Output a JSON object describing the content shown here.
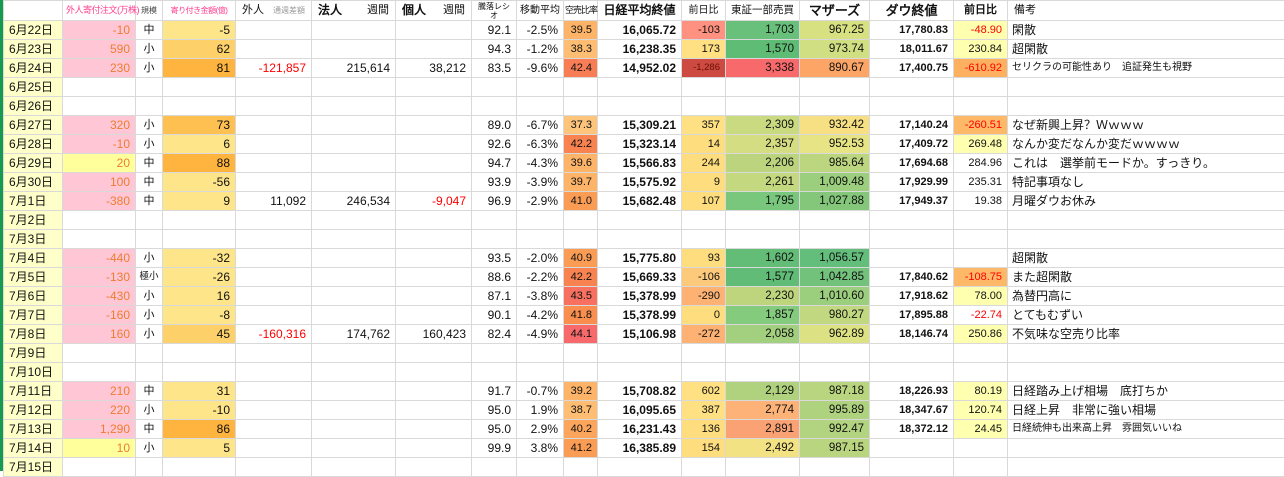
{
  "sheet": {
    "colors": {
      "left_edge": "#169b4e",
      "gridline": "#d9d9d9",
      "date_column_bg": "#ffffc9",
      "negative_text": "#ff0000",
      "foreign_order_bg": "#ffc7d6",
      "foreign_order_text": "#ed7d31"
    }
  },
  "table": {
    "columns": [
      {
        "key": "date",
        "label": ""
      },
      {
        "key": "foreign_order",
        "label": "外人寄付注文(万株)"
      },
      {
        "key": "size",
        "label": "規模"
      },
      {
        "key": "opening_amount",
        "label": "寄り付き金額(億)"
      },
      {
        "key": "foreign_week",
        "label": "外人",
        "sublabel": "通週差額"
      },
      {
        "key": "corp_week",
        "label": "法人",
        "sublabel": "週間"
      },
      {
        "key": "indiv_week",
        "label": "個人",
        "sublabel": "週間"
      },
      {
        "key": "updown_ratio",
        "label": "騰落レシオ"
      },
      {
        "key": "moving_avg",
        "label": "移動平均"
      },
      {
        "key": "short_ratio",
        "label": "空売比率"
      },
      {
        "key": "nikkei_close",
        "label": "日経平均終値"
      },
      {
        "key": "nikkei_change",
        "label": "前日比"
      },
      {
        "key": "tse1_value",
        "label": "東証一部売買"
      },
      {
        "key": "mothers",
        "label": "マザーズ"
      },
      {
        "key": "dow_close",
        "label": "ダウ終値"
      },
      {
        "key": "dow_change",
        "label": "前日比"
      },
      {
        "key": "note",
        "label": "備考"
      }
    ],
    "rows": [
      {
        "date": "6月22日",
        "cells": [
          [
            "-10",
            "#ffc7d6",
            "#ed7d31"
          ],
          [
            "中"
          ],
          [
            "-5",
            "#ffe58a"
          ],
          [],
          [],
          [],
          [
            "92.1"
          ],
          [
            "-2.5%"
          ],
          [
            "39.5",
            "#fdb368"
          ],
          [
            "16,065.72"
          ],
          [
            "-103",
            "#ff9180"
          ],
          [
            "1,703",
            "#68c07b"
          ],
          [
            "967.25",
            "#d7e182"
          ],
          [
            "17,780.83"
          ],
          [
            "-48.90",
            "#ffffb0",
            "#ff0000"
          ],
          [
            "閑散"
          ]
        ]
      },
      {
        "date": "6月23日",
        "cells": [
          [
            "590",
            "#ffc7d6",
            "#ed7d31"
          ],
          [
            "小"
          ],
          [
            "62",
            "#fed06a"
          ],
          [],
          [],
          [],
          [
            "94.3"
          ],
          [
            "-1.2%"
          ],
          [
            "38.3",
            "#fdbd72"
          ],
          [
            "16,238.35"
          ],
          [
            "173",
            "#ffe083"
          ],
          [
            "1,570",
            "#5fbc75"
          ],
          [
            "973.74",
            "#cfdf81"
          ],
          [
            "18,011.67"
          ],
          [
            "230.84",
            "#ffffb0"
          ],
          [
            "超閑散"
          ]
        ]
      },
      {
        "date": "6月24日",
        "cells": [
          [
            "230",
            "#ffc7d6",
            "#ed7d31"
          ],
          [
            "小"
          ],
          [
            "81",
            "#feb43f"
          ],
          [
            "-121,857",
            "",
            "#ff0000"
          ],
          [
            "215,614"
          ],
          [
            "38,212"
          ],
          [
            "83.5"
          ],
          [
            "-9.6%"
          ],
          [
            "42.4",
            "#f87d55"
          ],
          [
            "14,952.02"
          ],
          [
            "-1,286",
            "#cd4a42",
            "#6b0f00",
            "tiny"
          ],
          [
            "3,338",
            "#f8696b"
          ],
          [
            "890.67",
            "#fca567"
          ],
          [
            "17,400.75"
          ],
          [
            "-610.92",
            "#fdb060",
            "#ff0000"
          ],
          [
            "セリクラの可能性あり　追証発生も視野",
            "",
            "",
            "small-note"
          ]
        ]
      },
      {
        "date": "6月25日",
        "cells": []
      },
      {
        "date": "6月26日",
        "cells": []
      },
      {
        "date": "6月27日",
        "cells": [
          [
            "320",
            "#ffc7d6",
            "#ed7d31"
          ],
          [
            "小"
          ],
          [
            "73",
            "#fec050"
          ],
          [],
          [],
          [],
          [
            "89.0"
          ],
          [
            "-6.7%"
          ],
          [
            "37.3",
            "#fdc57c"
          ],
          [
            "15,309.21"
          ],
          [
            "357",
            "#ffe083"
          ],
          [
            "2,309",
            "#cada80"
          ],
          [
            "932.42",
            "#f6e083"
          ],
          [
            "17,140.24"
          ],
          [
            "-260.51",
            "#fdb868",
            "#ff0000"
          ],
          [
            "なぜ新興上昇？Ｗｗｗｗ"
          ]
        ]
      },
      {
        "date": "6月28日",
        "cells": [
          [
            "-10",
            "#ffc7d6",
            "#ed7d31"
          ],
          [
            "小"
          ],
          [
            "6",
            "#ffe58a"
          ],
          [],
          [],
          [],
          [
            "92.6"
          ],
          [
            "-6.3%"
          ],
          [
            "42.2",
            "#f98350"
          ],
          [
            "15,323.14"
          ],
          [
            "14",
            "#fedd7e"
          ],
          [
            "2,357",
            "#d4dd81"
          ],
          [
            "952.53",
            "#e6e484"
          ],
          [
            "17,409.72"
          ],
          [
            "269.48",
            "#ffffb0"
          ],
          [
            "なんか変だなんか変だｗｗｗｗ"
          ]
        ]
      },
      {
        "date": "6月29日",
        "cells": [
          [
            "20",
            "#ffff9c",
            "#ed7d31"
          ],
          [
            "中"
          ],
          [
            "88",
            "#feb43f"
          ],
          [],
          [],
          [],
          [
            "94.7"
          ],
          [
            "-4.3%"
          ],
          [
            "39.6",
            "#fdb368"
          ],
          [
            "15,566.83"
          ],
          [
            "244",
            "#fedd7e"
          ],
          [
            "2,206",
            "#bcd47e"
          ],
          [
            "985.64",
            "#bcd67f"
          ],
          [
            "17,694.68"
          ],
          [
            "284.96"
          ],
          [
            "これは　選挙前モードか。すっきり。"
          ]
        ]
      },
      {
        "date": "6月30日",
        "cells": [
          [
            "100",
            "#ffc7d6",
            "#ed7d31"
          ],
          [
            "中"
          ],
          [
            "-56",
            "#ffe58a"
          ],
          [],
          [],
          [],
          [
            "93.9"
          ],
          [
            "-3.9%"
          ],
          [
            "39.7",
            "#fdb368"
          ],
          [
            "15,575.92"
          ],
          [
            "9",
            "#fedd7e"
          ],
          [
            "2,261",
            "#c4d87f"
          ],
          [
            "1,009.48",
            "#9ccf7d"
          ],
          [
            "17,929.99"
          ],
          [
            "235.31"
          ],
          [
            "特記事項なし"
          ]
        ]
      },
      {
        "date": "7月1日",
        "cells": [
          [
            "-380",
            "#ffc7d6",
            "#ed7d31"
          ],
          [
            "中"
          ],
          [
            "9",
            "#ffe58a"
          ],
          [
            "11,092"
          ],
          [
            "246,534"
          ],
          [
            "-9,047",
            "",
            "#ff0000"
          ],
          [
            "96.9"
          ],
          [
            "-2.9%"
          ],
          [
            "41.0",
            "#fb9c55"
          ],
          [
            "15,682.48"
          ],
          [
            "107",
            "#fedd7e"
          ],
          [
            "1,795",
            "#79c77d"
          ],
          [
            "1,027.88",
            "#84c77b"
          ],
          [
            "17,949.37"
          ],
          [
            "19.38"
          ],
          [
            "月曜ダウお休み"
          ]
        ]
      },
      {
        "date": "7月2日",
        "cells": []
      },
      {
        "date": "7月3日",
        "cells": []
      },
      {
        "date": "7月4日",
        "cells": [
          [
            "-440",
            "#ffc7d6",
            "#ed7d31"
          ],
          [
            "小"
          ],
          [
            "-32",
            "#ffe58a"
          ],
          [],
          [],
          [],
          [
            "93.5"
          ],
          [
            "-2.0%"
          ],
          [
            "40.9",
            "#fb9c55"
          ],
          [
            "15,775.80"
          ],
          [
            "93",
            "#fedd7e"
          ],
          [
            "1,602",
            "#63bd77"
          ],
          [
            "1,056.57",
            "#63be7b"
          ],
          [],
          [],
          [
            "超閑散"
          ]
        ]
      },
      {
        "date": "7月5日",
        "cells": [
          [
            "-130",
            "#ffc7d6",
            "#ed7d31"
          ],
          [
            "極小",
            "",
            "",
            "tiny"
          ],
          [
            "-26",
            "#ffe58a"
          ],
          [],
          [],
          [],
          [
            "88.6"
          ],
          [
            "-2.2%"
          ],
          [
            "42.2",
            "#f98350"
          ],
          [
            "15,669.33"
          ],
          [
            "-106",
            "#fdc97a"
          ],
          [
            "1,577",
            "#60bc76"
          ],
          [
            "1,042.85",
            "#72c27b"
          ],
          [
            "17,840.62"
          ],
          [
            "-108.75",
            "#fdb868",
            "#ff0000"
          ],
          [
            "また超閑散"
          ]
        ]
      },
      {
        "date": "7月6日",
        "cells": [
          [
            "-430",
            "#ffc7d6",
            "#ed7d31"
          ],
          [
            "小"
          ],
          [
            "16",
            "#ffe58a"
          ],
          [],
          [],
          [],
          [
            "87.1"
          ],
          [
            "-3.8%"
          ],
          [
            "43.5",
            "#f8705f"
          ],
          [
            "15,378.99"
          ],
          [
            "-290",
            "#fdb273"
          ],
          [
            "2,230",
            "#bed57e"
          ],
          [
            "1,010.60",
            "#9bce7d"
          ],
          [
            "17,918.62"
          ],
          [
            "78.00",
            "#ffffb0"
          ],
          [
            "為替円高に"
          ]
        ]
      },
      {
        "date": "7月7日",
        "cells": [
          [
            "-160",
            "#ffc7d6",
            "#ed7d31"
          ],
          [
            "小"
          ],
          [
            "-8",
            "#ffe58a"
          ],
          [],
          [],
          [],
          [
            "90.1"
          ],
          [
            "-4.2%"
          ],
          [
            "41.8",
            "#fa8e4e"
          ],
          [
            "15,378.99"
          ],
          [
            "0",
            "#fedd7e"
          ],
          [
            "1,857",
            "#84cb7e"
          ],
          [
            "980.27",
            "#c2d880"
          ],
          [
            "17,895.88"
          ],
          [
            "-22.74",
            "",
            "#ff0000"
          ],
          [
            "とてもむずい"
          ]
        ]
      },
      {
        "date": "7月8日",
        "cells": [
          [
            "160",
            "#ffc7d6",
            "#ed7d31"
          ],
          [
            "小"
          ],
          [
            "45",
            "#fed06a"
          ],
          [
            "-160,316",
            "",
            "#ff0000"
          ],
          [
            "174,762"
          ],
          [
            "160,423"
          ],
          [
            "82.4"
          ],
          [
            "-4.9%"
          ],
          [
            "44.1",
            "#f8696b"
          ],
          [
            "15,106.98"
          ],
          [
            "-272",
            "#fdb273"
          ],
          [
            "2,058",
            "#a3d07e"
          ],
          [
            "962.89",
            "#dce283"
          ],
          [
            "18,146.74"
          ],
          [
            "250.86",
            "#ffffb0"
          ],
          [
            "不気味な空売り比率"
          ]
        ]
      },
      {
        "date": "7月9日",
        "cells": []
      },
      {
        "date": "7月10日",
        "cells": []
      },
      {
        "date": "7月11日",
        "cells": [
          [
            "210",
            "#ffc7d6",
            "#ed7d31"
          ],
          [
            "中"
          ],
          [
            "31",
            "#ffe58a"
          ],
          [],
          [],
          [],
          [
            "91.7"
          ],
          [
            "-0.7%"
          ],
          [
            "39.2",
            "#fdb368"
          ],
          [
            "15,708.82"
          ],
          [
            "602",
            "#ffe083"
          ],
          [
            "2,129",
            "#b0d27e"
          ],
          [
            "987.18",
            "#bad57f"
          ],
          [
            "18,226.93"
          ],
          [
            "80.19",
            "#ffffb0"
          ],
          [
            "日経踏み上げ相場　底打ちか"
          ]
        ]
      },
      {
        "date": "7月12日",
        "cells": [
          [
            "220",
            "#ffc7d6",
            "#ed7d31"
          ],
          [
            "小"
          ],
          [
            "-10",
            "#ffe58a"
          ],
          [],
          [],
          [],
          [
            "95.0"
          ],
          [
            "1.9%"
          ],
          [
            "38.7",
            "#fdbd72"
          ],
          [
            "16,095.65"
          ],
          [
            "387",
            "#ffe083"
          ],
          [
            "2,774",
            "#fdb377"
          ],
          [
            "995.89",
            "#aed27e"
          ],
          [
            "18,347.67"
          ],
          [
            "120.74",
            "#ffffb0"
          ],
          [
            "日経上昇　非常に強い相場"
          ]
        ]
      },
      {
        "date": "7月13日",
        "cells": [
          [
            "1,290",
            "#ffc7d6",
            "#ed7d31"
          ],
          [
            "中"
          ],
          [
            "86",
            "#feb43f"
          ],
          [],
          [],
          [],
          [
            "95.0"
          ],
          [
            "2.9%"
          ],
          [
            "40.2",
            "#fca55c"
          ],
          [
            "16,231.43"
          ],
          [
            "136",
            "#fedd7e"
          ],
          [
            "2,891",
            "#fba275"
          ],
          [
            "992.47",
            "#b2d37f"
          ],
          [
            "18,372.12"
          ],
          [
            "24.45",
            "#ffffb0"
          ],
          [
            "日経続伸も出来高上昇　雰囲気いいね",
            "",
            "",
            "small-note"
          ]
        ]
      },
      {
        "date": "7月14日",
        "cells": [
          [
            "10",
            "#ffff9c",
            "#ed7d31"
          ],
          [
            "小"
          ],
          [
            "5",
            "#ffe58a"
          ],
          [],
          [],
          [],
          [
            "99.9"
          ],
          [
            "3.8%"
          ],
          [
            "41.2",
            "#fb9c55"
          ],
          [
            "16,385.89"
          ],
          [
            "154",
            "#fedd7e"
          ],
          [
            "2,492",
            "#f2e283"
          ],
          [
            "987.15",
            "#bad57f"
          ],
          [],
          [],
          []
        ]
      },
      {
        "date": "7月15日",
        "cells": []
      }
    ]
  }
}
